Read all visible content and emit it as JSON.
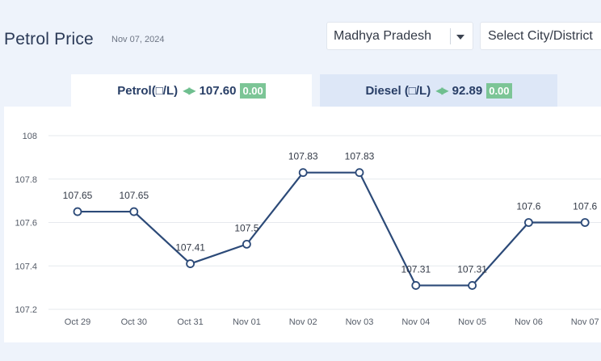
{
  "header": {
    "title": "Petrol Price",
    "date": "Nov 07, 2024",
    "state_select": {
      "value": "Madhya Pradesh"
    },
    "city_select": {
      "value": "Select City/District"
    }
  },
  "tabs": [
    {
      "label": "Petrol(□/L)",
      "price": "107.60",
      "change": "0.00",
      "active": true
    },
    {
      "label": "Diesel (□/L)",
      "price": "92.89",
      "change": "0.00",
      "active": false
    }
  ],
  "colors": {
    "line": "#2c4a78",
    "grid": "#e6e9ee",
    "badge": "#7cc596",
    "active_tab": "#ffffff",
    "inactive_tab": "#dde7f7"
  },
  "chart_data": {
    "type": "line",
    "categories": [
      "Oct 29",
      "Oct 30",
      "Oct 31",
      "Nov 01",
      "Nov 02",
      "Nov 03",
      "Nov 04",
      "Nov 05",
      "Nov 06",
      "Nov 07"
    ],
    "values": [
      107.65,
      107.65,
      107.41,
      107.5,
      107.83,
      107.83,
      107.31,
      107.31,
      107.6,
      107.6
    ],
    "data_labels": [
      "107.65",
      "107.65",
      "107.41",
      "107.5",
      "107.83",
      "107.83",
      "107.31",
      "107.31",
      "107.6",
      "107.6"
    ],
    "yticks": [
      "107.2",
      "107.4",
      "107.6",
      "107.8",
      "108"
    ],
    "ylim": [
      107.2,
      108
    ],
    "grid": true,
    "title": "",
    "xlabel": "",
    "ylabel": ""
  }
}
